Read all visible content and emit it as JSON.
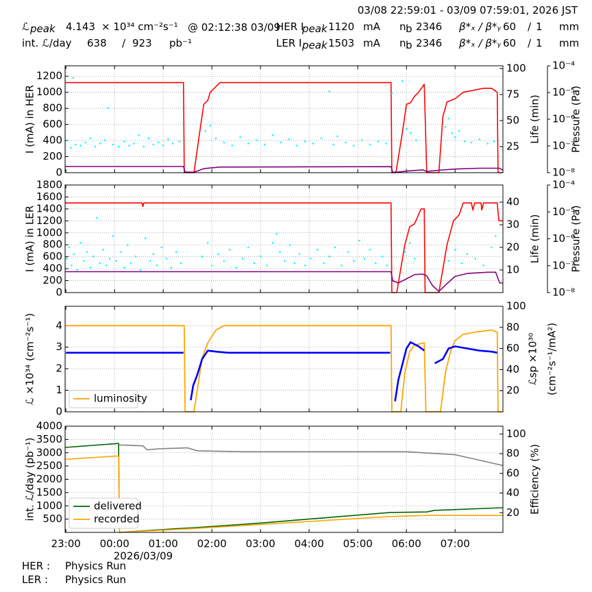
{
  "header": {
    "time_range": "03/08 22:59:01 - 03/09 07:59:01, 2026 JST",
    "lumi_peak": {
      "label": "ℒ",
      "sub": "peak",
      "value": 4.143,
      "unit": "× 10³⁴ cm⁻²s⁻¹",
      "time": "@ 02:12:38 03/09"
    },
    "int_lumi": {
      "label": "int. ℒ/day",
      "recorded": 638,
      "sep": "/",
      "delivered": 923,
      "unit": "pb⁻¹"
    },
    "rings": [
      {
        "label": "HER I",
        "sub": "peak",
        "current": 1120,
        "current_unit": "mA",
        "nb": "n",
        "nb_sub": "b",
        "nb_value": 2346,
        "beta_label": "β*ₓ / β*ᵧ",
        "beta_x": 60,
        "beta_sep": "/",
        "beta_y": 1,
        "beta_unit": "mm"
      },
      {
        "label": "LER I",
        "sub": "peak",
        "current": 1503,
        "current_unit": "mA",
        "nb": "n",
        "nb_sub": "b",
        "nb_value": 2346,
        "beta_label": "β*ₓ / β*ᵧ",
        "beta_x": 60,
        "beta_sep": "/",
        "beta_y": 1,
        "beta_unit": "mm"
      }
    ],
    "footer": [
      {
        "ring": "HER :",
        "mode": "Physics Run"
      },
      {
        "ring": "LER :",
        "mode": "Physics Run"
      }
    ]
  },
  "chart_data": [
    {
      "type": "line",
      "grid": true,
      "xlim": [
        "22:59",
        "07:59"
      ],
      "ylabel": "I (mA) in HER",
      "ylim": [
        0,
        1330
      ],
      "yticks": [
        0,
        200,
        400,
        600,
        800,
        1000,
        1200
      ],
      "y2label": "Life (min)",
      "y2lim": [
        0,
        102.6
      ],
      "y2ticks": [
        25,
        50,
        75,
        100
      ],
      "y3label": "Pressure (Pa)",
      "y3scale": "log",
      "y3lim": [
        1e-08,
        0.0001
      ],
      "y3ticks": [
        {
          "value": 1e-08,
          "label": "10⁻⁸"
        },
        {
          "value": 1e-07,
          "label": "10⁻⁷"
        },
        {
          "value": 1e-06,
          "label": "10⁻⁶"
        },
        {
          "value": 1e-05,
          "label": "10⁻⁵"
        },
        {
          "value": 0.0001,
          "label": "10⁻⁴"
        }
      ],
      "series": [
        {
          "type": "line",
          "color": "#ff0000",
          "linewidth": 1.6,
          "x": [
            "22:59",
            "01:25",
            "01:26",
            "01:38",
            "01:45",
            "01:50",
            "01:55",
            "01:58",
            "02:03",
            "02:10",
            "05:41",
            "05:42",
            "05:47",
            "05:55",
            "06:00",
            "06:05",
            "06:10",
            "06:15",
            "06:22",
            "06:25",
            "06:40",
            "06:45",
            "06:50",
            "07:00",
            "07:10",
            "07:20",
            "07:35",
            "07:45",
            "07:52",
            "07:53",
            "07:59"
          ],
          "values": [
            1120,
            1120,
            0,
            0,
            500,
            850,
            900,
            1000,
            1050,
            1120,
            1120,
            0,
            0,
            500,
            850,
            870,
            950,
            1000,
            1100,
            0,
            0,
            700,
            880,
            920,
            1000,
            1020,
            1050,
            1050,
            1000,
            0,
            0
          ]
        },
        {
          "type": "line",
          "color": "#800080",
          "linewidth": 1.6,
          "x": [
            "22:59",
            "01:25",
            "01:27",
            "01:38",
            "01:50",
            "02:10",
            "05:41",
            "05:43",
            "05:50",
            "06:00",
            "06:20",
            "06:25",
            "06:40",
            "07:00",
            "07:30",
            "07:55",
            "07:59"
          ],
          "values": [
            77,
            77,
            8,
            5,
            50,
            70,
            75,
            5,
            8,
            20,
            35,
            15,
            30,
            45,
            55,
            55,
            30
          ]
        },
        {
          "type": "scatter",
          "axis": "y2",
          "color": "#00ffff",
          "x": [
            "23:02",
            "23:06",
            "23:09",
            "23:12",
            "23:18",
            "23:24",
            "23:30",
            "23:36",
            "23:42",
            "23:48",
            "23:52",
            "23:58",
            "00:05",
            "00:12",
            "00:18",
            "00:24",
            "00:30",
            "00:36",
            "00:42",
            "00:48",
            "00:54",
            "01:00",
            "01:06",
            "01:12",
            "01:20",
            "01:52",
            "01:58",
            "02:05",
            "02:15",
            "02:25",
            "02:35",
            "02:45",
            "02:55",
            "03:05",
            "03:15",
            "03:25",
            "03:35",
            "03:45",
            "03:55",
            "04:05",
            "04:15",
            "04:25",
            "04:30",
            "04:35",
            "04:45",
            "04:55",
            "05:05",
            "05:15",
            "05:25",
            "05:35",
            "05:42",
            "05:55",
            "06:00",
            "06:05",
            "06:12",
            "06:48",
            "06:52",
            "06:56",
            "07:00",
            "07:05",
            "07:12",
            "07:20",
            "07:30",
            "07:40",
            "07:48"
          ],
          "values": [
            31,
            24,
            91,
            27,
            26,
            29,
            33,
            25,
            28,
            31,
            62,
            27,
            25,
            30,
            26,
            28,
            36,
            25,
            33,
            27,
            29,
            26,
            32,
            28,
            30,
            40,
            45,
            33,
            29,
            26,
            34,
            28,
            31,
            27,
            36,
            29,
            32,
            26,
            30,
            28,
            33,
            78,
            27,
            35,
            29,
            26,
            31,
            27,
            30,
            28,
            76,
            88,
            42,
            38,
            31,
            44,
            52,
            38,
            34,
            40,
            30,
            29,
            32,
            28,
            30
          ]
        }
      ]
    },
    {
      "type": "line",
      "grid": true,
      "xlim": [
        "22:59",
        "07:59"
      ],
      "ylabel": "I (mA) in LER",
      "ylim": [
        0,
        1800
      ],
      "yticks": [
        0,
        200,
        400,
        600,
        800,
        1000,
        1200,
        1400,
        1600,
        1800
      ],
      "y2label": "Life (min)",
      "y2lim": [
        0,
        47.6
      ],
      "y2ticks": [
        10,
        20,
        30,
        40
      ],
      "y3label": "Pressure (Pa)",
      "y3scale": "log",
      "y3lim": [
        1e-08,
        0.0001
      ],
      "y3ticks": [
        {
          "value": 1e-08,
          "label": "10⁻⁸"
        },
        {
          "value": 1e-07,
          "label": "10⁻⁷"
        },
        {
          "value": 1e-06,
          "label": "10⁻⁶"
        },
        {
          "value": 1e-05,
          "label": "10⁻⁵"
        },
        {
          "value": 0.0001,
          "label": "10⁻⁴"
        }
      ],
      "series": [
        {
          "type": "line",
          "color": "#ff0000",
          "linewidth": 1.6,
          "x": [
            "22:59",
            "00:34",
            "00:35",
            "00:36",
            "05:41",
            "05:42",
            "05:48",
            "05:58",
            "06:04",
            "06:10",
            "06:18",
            "06:22",
            "06:23",
            "06:40",
            "06:50",
            "06:58",
            "07:05",
            "07:10",
            "07:20",
            "07:22",
            "07:24",
            "07:32",
            "07:33",
            "07:35",
            "07:52",
            "07:54",
            "07:59"
          ],
          "values": [
            1500,
            1500,
            1440,
            1500,
            1500,
            0,
            0,
            800,
            1100,
            1150,
            1400,
            1400,
            0,
            0,
            800,
            1200,
            1300,
            1500,
            1500,
            1380,
            1500,
            1500,
            1380,
            1500,
            1500,
            1200,
            1200
          ]
        },
        {
          "type": "line",
          "color": "#800080",
          "linewidth": 1.6,
          "x": [
            "22:59",
            "05:41",
            "05:43",
            "05:50",
            "06:00",
            "06:10",
            "06:20",
            "06:25",
            "06:32",
            "06:40",
            "06:50",
            "07:00",
            "07:15",
            "07:40",
            "07:50",
            "07:55",
            "07:59"
          ],
          "values": [
            350,
            350,
            200,
            160,
            230,
            300,
            310,
            280,
            120,
            20,
            150,
            270,
            320,
            340,
            340,
            160,
            160
          ]
        },
        {
          "type": "scatter",
          "axis": "y2",
          "color": "#00ffff",
          "x": [
            "23:01",
            "23:04",
            "23:07",
            "23:10",
            "23:14",
            "23:18",
            "23:22",
            "23:26",
            "23:30",
            "23:34",
            "23:38",
            "23:42",
            "23:46",
            "23:50",
            "23:54",
            "23:58",
            "00:02",
            "00:08",
            "00:12",
            "00:16",
            "00:20",
            "00:26",
            "00:32",
            "00:38",
            "00:44",
            "00:48",
            "00:52",
            "00:58",
            "01:04",
            "01:10",
            "01:16",
            "01:22",
            "01:48",
            "01:55",
            "02:00",
            "02:08",
            "02:15",
            "02:22",
            "02:30",
            "02:38",
            "02:45",
            "02:52",
            "03:00",
            "03:08",
            "03:15",
            "03:20",
            "03:24",
            "03:30",
            "03:36",
            "03:42",
            "03:48",
            "03:55",
            "04:02",
            "04:10",
            "04:18",
            "04:25",
            "04:32",
            "04:40",
            "04:48",
            "04:55",
            "05:02",
            "05:08",
            "05:15",
            "05:22",
            "05:30",
            "05:36",
            "05:58",
            "06:04",
            "06:10",
            "06:52",
            "07:00",
            "07:08",
            "07:15",
            "07:25",
            "07:35",
            "07:45",
            "07:50"
          ],
          "values": [
            15,
            20,
            12,
            17,
            10,
            22,
            14,
            18,
            11,
            16,
            33,
            13,
            19,
            12,
            15,
            25,
            14,
            18,
            11,
            21,
            13,
            16,
            10,
            24,
            14,
            17,
            12,
            20,
            15,
            11,
            18,
            13,
            16,
            22,
            12,
            17,
            14,
            19,
            11,
            15,
            20,
            13,
            16,
            12,
            22,
            26,
            18,
            14,
            21,
            13,
            17,
            12,
            15,
            19,
            13,
            16,
            20,
            12,
            18,
            14,
            23,
            15,
            19,
            13,
            16,
            12,
            18,
            22,
            15,
            14,
            19,
            13,
            17,
            15,
            12,
            20,
            25
          ]
        }
      ]
    },
    {
      "type": "line",
      "grid": true,
      "xlim": [
        "22:59",
        "07:59"
      ],
      "ylabel": "ℒ ×10³⁴ (cm⁻²s⁻¹)",
      "ylim": [
        0,
        4.9
      ],
      "yticks": [
        0,
        1,
        2,
        3,
        4
      ],
      "y2label": [
        "ℒsp ×10³⁰",
        "(cm⁻²s⁻¹/mA²)"
      ],
      "y2lim": [
        0,
        100
      ],
      "y2ticks": [
        20,
        40,
        60,
        80,
        100
      ],
      "legend": "lower left",
      "series": [
        {
          "type": "line",
          "name": "luminosity",
          "color": "#ffa500",
          "linewidth": 1.8,
          "x": [
            "22:59",
            "01:26",
            "01:27",
            "01:38",
            "01:44",
            "01:48",
            "01:55",
            "02:05",
            "02:15",
            "05:41",
            "05:42",
            "05:53",
            "05:58",
            "06:04",
            "06:10",
            "06:22",
            "06:24",
            "06:42",
            "06:48",
            "06:55",
            "07:00",
            "07:10",
            "07:25",
            "07:45",
            "07:52",
            "07:53",
            "07:59"
          ],
          "values": [
            4.0,
            4.0,
            0,
            0,
            1.5,
            2.5,
            3.2,
            3.8,
            4.0,
            4.0,
            0,
            0,
            1.8,
            2.8,
            3.1,
            3.2,
            0,
            0,
            1.8,
            2.9,
            3.3,
            3.6,
            3.7,
            3.8,
            3.7,
            0,
            0
          ]
        },
        {
          "type": "line",
          "axis": "y2",
          "color": "#0000ff",
          "linewidth": 2.6,
          "x": [
            "23:00",
            "01:25",
            "01:30",
            "01:34",
            "01:37",
            "01:42",
            "01:48",
            "01:55",
            "02:05",
            "02:20",
            "05:40",
            "05:43",
            "05:46",
            "05:50",
            "05:55",
            "06:00",
            "06:05",
            "06:15",
            "06:22",
            "06:28",
            "06:35",
            "06:45",
            "06:52",
            "07:00",
            "07:15",
            "07:30",
            "07:45",
            "07:52"
          ],
          "values": [
            56,
            56,
            null,
            11,
            25,
            35,
            50,
            58,
            57,
            56,
            56,
            null,
            10,
            30,
            45,
            60,
            66,
            62,
            58,
            null,
            46,
            50,
            60,
            62,
            60,
            58,
            57,
            56
          ]
        }
      ]
    },
    {
      "type": "line",
      "grid": true,
      "xlim": [
        "22:59",
        "07:59"
      ],
      "xticks": [
        "23:00",
        "00:00",
        "01:00",
        "02:00",
        "03:00",
        "04:00",
        "05:00",
        "06:00",
        "07:00"
      ],
      "xlabel": "2026/03/09",
      "ylabel": "int. ℒ/day (pb⁻¹)",
      "ylim": [
        0,
        4000
      ],
      "yticks": [
        500,
        1000,
        1500,
        2000,
        2500,
        3000,
        3500,
        4000
      ],
      "y2label": "Efficiency (%)",
      "y2lim": [
        0,
        108
      ],
      "y2ticks": [
        20,
        40,
        60,
        80,
        100
      ],
      "legend": "lower left",
      "series": [
        {
          "type": "line",
          "name": "delivered",
          "color": "#006400",
          "linewidth": 1.6,
          "x": [
            "22:59",
            "00:05",
            "00:06",
            "01:10",
            "01:40",
            "03:00",
            "05:40",
            "06:25",
            "06:35",
            "07:00",
            "07:59"
          ],
          "values": [
            3200,
            3350,
            0,
            130,
            180,
            350,
            750,
            770,
            830,
            860,
            930
          ]
        },
        {
          "type": "line",
          "name": "recorded",
          "color": "#ffa500",
          "linewidth": 1.6,
          "x": [
            "22:59",
            "00:05",
            "00:06",
            "01:10",
            "01:40",
            "03:00",
            "05:40",
            "06:25",
            "07:59"
          ],
          "values": [
            2750,
            2880,
            0,
            100,
            150,
            300,
            600,
            640,
            638
          ]
        },
        {
          "type": "line",
          "axis": "y2",
          "color": "#808080",
          "linewidth": 1.6,
          "x": [
            "00:05",
            "00:35",
            "00:40",
            "00:55",
            "01:30",
            "01:42",
            "02:40",
            "06:00",
            "06:40",
            "07:00",
            "07:59"
          ],
          "values": [
            89,
            88,
            84,
            85,
            86,
            83,
            82,
            82,
            80,
            79,
            68
          ]
        }
      ]
    }
  ]
}
